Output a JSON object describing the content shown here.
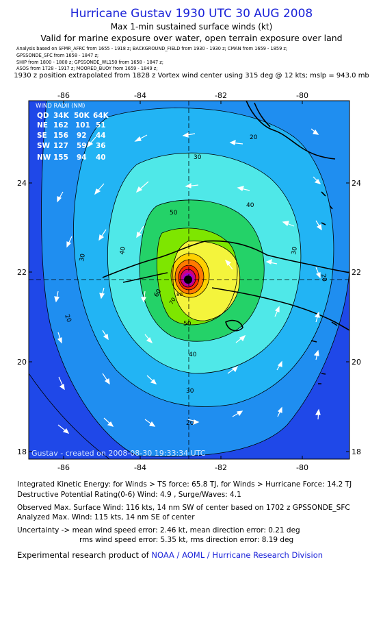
{
  "header": {
    "title": "Hurricane Gustav 1930 UTC 30 AUG 2008",
    "subtitle": "Max 1-min sustained surface winds (kt)",
    "exposure": "Valid for marine exposure over water, open terrain exposure over land",
    "sources": [
      "Analysis based on  SFMR_AFRC from 1655 - 1918 z;  BACKGROUND_FIELD from 1930 - 1930 z;  CMAN from 1659 - 1859 z;",
      "GPSSONDE_SFC from 1658 - 1847 z;",
      "SHIP from 1800 - 1800 z;  GPSSONDE_WL150 from 1658 - 1847 z;",
      "ASOS from 1728 - 1917 z;  MOORED_BUOY from 1659 - 1849 z;"
    ],
    "extrapolation": "1930 z position extrapolated from 1828 z Vortex wind center using 315 deg @ 12 kts; mslp = 943.0 mb"
  },
  "map": {
    "lon_labels": [
      "-86",
      "-84",
      "-82",
      "-80"
    ],
    "lat_labels": [
      "24",
      "22",
      "20",
      "18"
    ],
    "credit": "Gustav - created on 2008-08-30 19:33:34 UTC",
    "contour_labels": [
      "20",
      "30",
      "40",
      "50",
      "60",
      "70",
      "80"
    ],
    "wind_radii": {
      "title": "WIND RADII (NM)",
      "header": [
        "QD",
        "34K",
        "50K",
        "64K"
      ],
      "rows": [
        [
          "NE",
          "162",
          "101",
          "51"
        ],
        [
          "SE",
          "156",
          "92",
          "44"
        ],
        [
          "SW",
          "127",
          "59",
          "36"
        ],
        [
          "NW",
          "155",
          "94",
          "40"
        ]
      ]
    },
    "colors": {
      "ocean_far": "#1f48e8",
      "level_20": "#1f8ef0",
      "level_30": "#22b4f4",
      "level_40": "#4fe8e8",
      "level_50": "#24d268",
      "level_60": "#7ee600",
      "level_64": "#f4f43c",
      "level_75": "#ffd000",
      "level_85": "#ff7a00",
      "level_95": "#ff2a00",
      "level_105": "#d0007a",
      "level_115": "#a000c8",
      "eye": "#000000"
    }
  },
  "footer": {
    "ike": "Integrated Kinetic Energy:  for Winds > TS force: 65.8 TJ,  for Winds > Hurricane Force: 14.2 TJ",
    "dpr": "Destructive Potential Rating(0-6)   Wind: 4.9 , Surge/Waves: 4.1",
    "observed": "Observed Max. Surface Wind: 116 kts, 14 nm SW of center based on 1702 z GPSSONDE_SFC",
    "analyzed": "Analyzed Max. Wind: 115 kts, 14 nm SE of center",
    "uncert1": "Uncertainty -> mean wind speed error: 2.46 kt,   mean direction error: 0.21 deg",
    "uncert2": "rms wind speed error: 5.35 kt,   rms direction error: 8.19 deg",
    "product_prefix": "Experimental research product of ",
    "product_org": "NOAA / AOML / Hurricane Research Division"
  }
}
